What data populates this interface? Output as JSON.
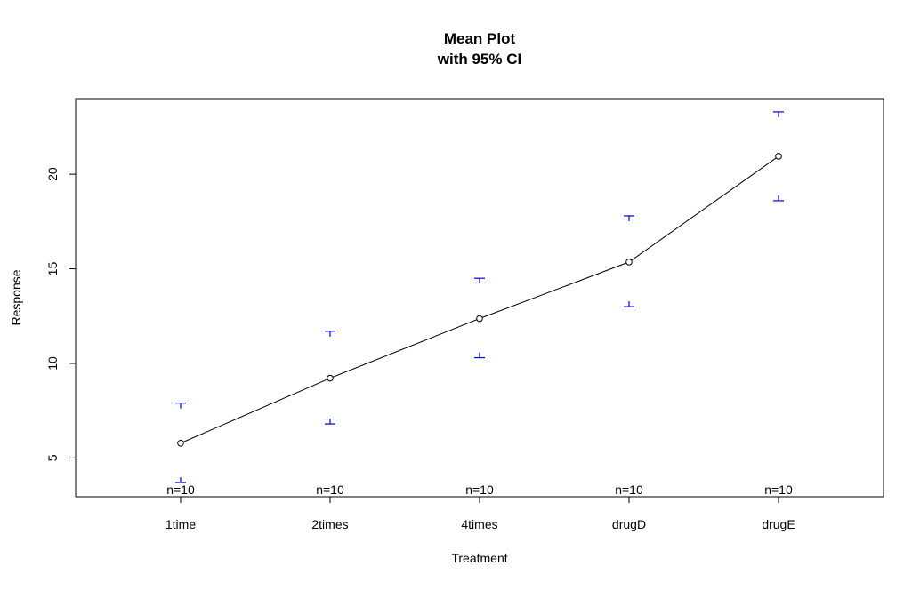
{
  "chart_data": {
    "type": "line",
    "title": "Mean Plot",
    "subtitle": "with 95% CI",
    "xlabel": "Treatment",
    "ylabel": "Response",
    "categories": [
      "1time",
      "2times",
      "4times",
      "drugD",
      "drugE"
    ],
    "means": [
      5.78,
      9.22,
      12.37,
      15.36,
      20.95
    ],
    "ci_lower": [
      3.7,
      6.8,
      10.3,
      13.0,
      18.6
    ],
    "ci_upper": [
      7.9,
      11.7,
      14.5,
      17.8,
      23.3
    ],
    "n_labels": [
      "n=10",
      "n=10",
      "n=10",
      "n=10",
      "n=10"
    ],
    "yticks": [
      5,
      10,
      15,
      20
    ],
    "ylim": [
      2.95,
      24.0
    ],
    "colors": {
      "mean_line": "#000000",
      "ci_bars": "#0000cc",
      "frame": "#000000"
    }
  }
}
